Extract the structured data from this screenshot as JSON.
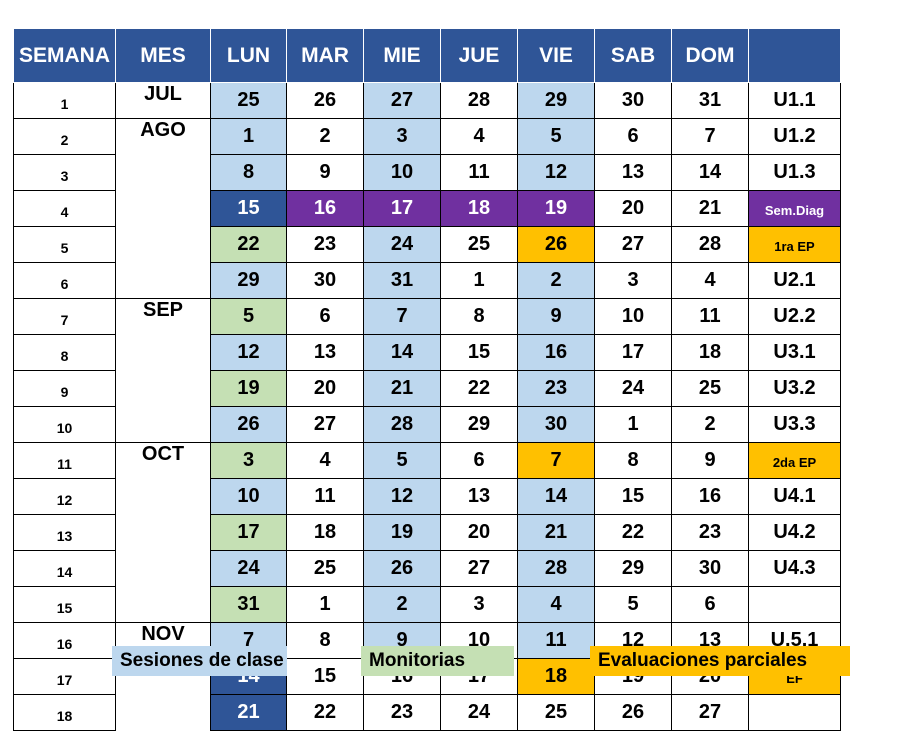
{
  "header": [
    "SEMANA",
    "MES",
    "LUN",
    "MAR",
    "MIE",
    "JUE",
    "VIE",
    "SAB",
    "DOM",
    ""
  ],
  "months": [
    {
      "label": "JUL",
      "rows": 1
    },
    {
      "label": "AGO",
      "rows": 5
    },
    {
      "label": "SEP",
      "rows": 4
    },
    {
      "label": "OCT",
      "rows": 5
    },
    {
      "label": "NOV",
      "rows": 3
    }
  ],
  "weeks": [
    {
      "semana": "1",
      "days": [
        "25",
        "26",
        "27",
        "28",
        "29",
        "30",
        "31"
      ],
      "colors": [
        "b",
        "",
        "b",
        "",
        "b",
        "",
        ""
      ],
      "unit": "U1.1"
    },
    {
      "semana": "2",
      "days": [
        "1",
        "2",
        "3",
        "4",
        "5",
        "6",
        "7"
      ],
      "colors": [
        "b",
        "",
        "b",
        "",
        "b",
        "",
        ""
      ],
      "unit": "U1.2"
    },
    {
      "semana": "3",
      "days": [
        "8",
        "9",
        "10",
        "11",
        "12",
        "13",
        "14"
      ],
      "colors": [
        "b",
        "",
        "b",
        "",
        "b",
        "",
        ""
      ],
      "unit": "U1.3"
    },
    {
      "semana": "4",
      "days": [
        "15",
        "16",
        "17",
        "18",
        "19",
        "20",
        "21"
      ],
      "colors": [
        "d",
        "p",
        "p",
        "p",
        "p",
        "",
        ""
      ],
      "unit": "Sem.Diag",
      "unit_color": "p"
    },
    {
      "semana": "5",
      "days": [
        "22",
        "23",
        "24",
        "25",
        "26",
        "27",
        "28"
      ],
      "colors": [
        "g",
        "",
        "b",
        "",
        "o",
        "",
        ""
      ],
      "unit": "1ra EP",
      "unit_color": "o"
    },
    {
      "semana": "6",
      "days": [
        "29",
        "30",
        "31",
        "1",
        "2",
        "3",
        "4"
      ],
      "colors": [
        "b",
        "",
        "b",
        "",
        "b",
        "",
        ""
      ],
      "unit": "U2.1"
    },
    {
      "semana": "7",
      "days": [
        "5",
        "6",
        "7",
        "8",
        "9",
        "10",
        "11"
      ],
      "colors": [
        "g",
        "",
        "b",
        "",
        "b",
        "",
        ""
      ],
      "unit": "U2.2"
    },
    {
      "semana": "8",
      "days": [
        "12",
        "13",
        "14",
        "15",
        "16",
        "17",
        "18"
      ],
      "colors": [
        "b",
        "",
        "b",
        "",
        "b",
        "",
        ""
      ],
      "unit": "U3.1"
    },
    {
      "semana": "9",
      "days": [
        "19",
        "20",
        "21",
        "22",
        "23",
        "24",
        "25"
      ],
      "colors": [
        "g",
        "",
        "b",
        "",
        "b",
        "",
        ""
      ],
      "unit": "U3.2"
    },
    {
      "semana": "10",
      "days": [
        "26",
        "27",
        "28",
        "29",
        "30",
        "1",
        "2"
      ],
      "colors": [
        "b",
        "",
        "b",
        "",
        "b",
        "",
        ""
      ],
      "unit": "U3.3"
    },
    {
      "semana": "11",
      "days": [
        "3",
        "4",
        "5",
        "6",
        "7",
        "8",
        "9"
      ],
      "colors": [
        "g",
        "",
        "b",
        "",
        "o",
        "",
        ""
      ],
      "unit": "2da EP",
      "unit_color": "o"
    },
    {
      "semana": "12",
      "days": [
        "10",
        "11",
        "12",
        "13",
        "14",
        "15",
        "16"
      ],
      "colors": [
        "b",
        "",
        "b",
        "",
        "b",
        "",
        ""
      ],
      "unit": "U4.1"
    },
    {
      "semana": "13",
      "days": [
        "17",
        "18",
        "19",
        "20",
        "21",
        "22",
        "23"
      ],
      "colors": [
        "g",
        "",
        "b",
        "",
        "b",
        "",
        ""
      ],
      "unit": "U4.2"
    },
    {
      "semana": "14",
      "days": [
        "24",
        "25",
        "26",
        "27",
        "28",
        "29",
        "30"
      ],
      "colors": [
        "b",
        "",
        "b",
        "",
        "b",
        "",
        ""
      ],
      "unit": "U4.3"
    },
    {
      "semana": "15",
      "days": [
        "31",
        "1",
        "2",
        "3",
        "4",
        "5",
        "6"
      ],
      "colors": [
        "g",
        "",
        "b",
        "",
        "b",
        "",
        ""
      ],
      "unit": ""
    },
    {
      "semana": "16",
      "days": [
        "7",
        "8",
        "9",
        "10",
        "11",
        "12",
        "13"
      ],
      "colors": [
        "b",
        "",
        "b",
        "",
        "b",
        "",
        ""
      ],
      "unit": "U.5.1"
    },
    {
      "semana": "17",
      "days": [
        "14",
        "15",
        "16",
        "17",
        "18",
        "19",
        "20"
      ],
      "colors": [
        "d",
        "",
        "",
        "",
        "o",
        "",
        ""
      ],
      "unit": "EF",
      "unit_color": "o"
    },
    {
      "semana": "18",
      "days": [
        "21",
        "22",
        "23",
        "24",
        "25",
        "26",
        "27"
      ],
      "colors": [
        "d",
        "",
        "",
        "",
        "",
        "",
        ""
      ],
      "unit": ""
    }
  ],
  "legend": {
    "clase": "Sesiones de clase",
    "monitorias": "Monitorias",
    "evaluaciones": "Evaluaciones parciales"
  },
  "colors": {
    "header": "#2f5597",
    "clase": "#bdd7ee",
    "monitorias": "#c5e0b4",
    "evaluaciones": "#ffc000",
    "diagnostico": "#7030a0",
    "destacado": "#2f5597"
  }
}
